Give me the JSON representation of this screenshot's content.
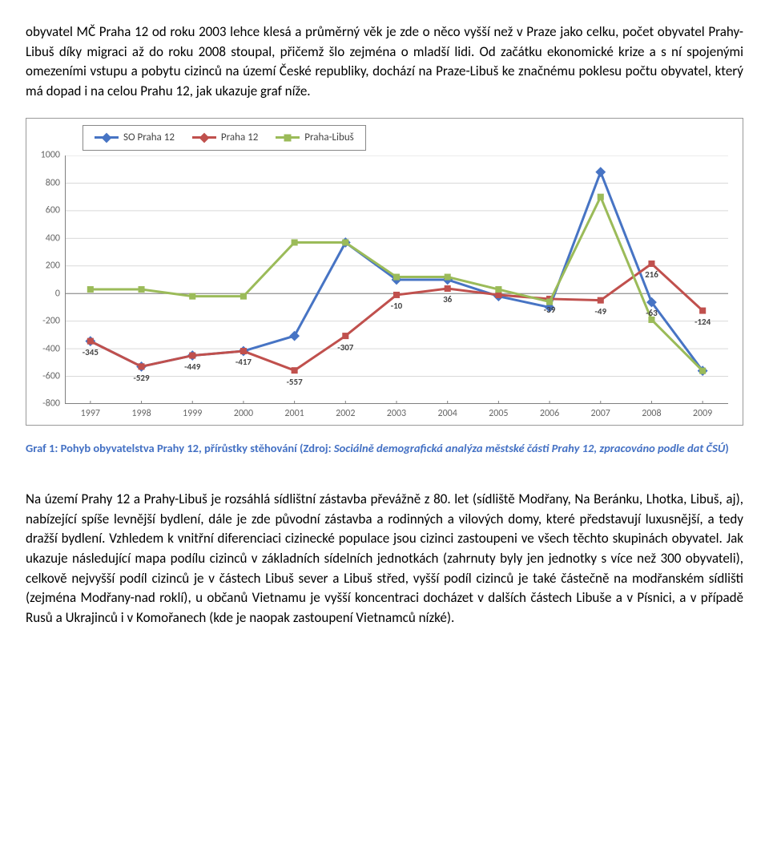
{
  "para1": "obyvatel MČ Praha 12 od roku 2003 lehce klesá a průměrný věk je zde o něco vyšší než v Praze jako celku, počet obyvatel Prahy-Libuš díky migraci až do roku 2008 stoupal, přičemž šlo zejména o mladší lidi. Od začátku ekonomické krize a s ní spojenými omezeními vstupu a pobytu cizinců na území České republiky, dochází na Praze-Libuš ke značnému poklesu počtu obyvatel, který má dopad i na celou Prahu 12, jak ukazuje graf níže.",
  "caption_lead": "Graf 1: Pohyb obyvatelstva Prahy 12, přírůstky stěhování (Zdroj: ",
  "caption_source": "Sociálně demografická analýza městské části Prahy 12, zpracováno podle dat ČSÚ",
  "caption_tail": ")",
  "para2": "Na území Prahy 12 a Prahy-Libuš je rozsáhlá sídlištní zástavba převážně z 80. let (sídliště Modřany, Na Beránku, Lhotka, Libuš, aj), nabízející spíše levnější bydlení, dále je zde původní zástavba a rodinných a vilových domy, které představují luxusnější, a tedy dražší bydlení. Vzhledem k vnitřní diferenciaci cizinecké populace jsou cizinci zastoupeni ve všech těchto skupinách obyvatel. Jak ukazuje následující mapa podílu cizinců v základních sídelních jednotkách (zahrnuty byly jen jednotky s více než 300 obyvateli), celkově nejvyšší podíl cizinců je v částech Libuš sever a Libuš střed, vyšší podíl cizinců je také částečně na modřanském sídlišti (zejména Modřany-nad roklí), u občanů Vietnamu je vyšší koncentraci docházet v dalších částech Libuše a v Písnici, a v případě Rusů a Ukrajinců i v Komořanech (kde je naopak zastoupení Vietnamců nízké).",
  "chart": {
    "type": "line",
    "categories": [
      "1997",
      "1998",
      "1999",
      "2000",
      "2001",
      "2002",
      "2003",
      "2004",
      "2005",
      "2006",
      "2007",
      "2008",
      "2009"
    ],
    "series": [
      {
        "name": "SO Praha 12",
        "values": [
          -345,
          -529,
          -449,
          -417,
          -307,
          370,
          100,
          100,
          -20,
          -100,
          880,
          -63,
          -560
        ],
        "color": "#4774c4"
      },
      {
        "name": "Praha 12",
        "values": [
          -345,
          -529,
          -449,
          -417,
          -557,
          -307,
          -10,
          36,
          -10,
          -39,
          -49,
          216,
          -124
        ],
        "color": "#c0504d"
      },
      {
        "name": "Praha-Libuš",
        "values": [
          30,
          30,
          -20,
          -20,
          370,
          370,
          120,
          120,
          30,
          -60,
          700,
          -190,
          -560
        ],
        "color": "#9bbb59"
      }
    ],
    "data_labels": [
      {
        "x": 0,
        "y": -345,
        "text": "-345"
      },
      {
        "x": 1,
        "y": -529,
        "text": "-529"
      },
      {
        "x": 2,
        "y": -449,
        "text": "-449"
      },
      {
        "x": 3,
        "y": -417,
        "text": "-417"
      },
      {
        "x": 4,
        "y": -557,
        "text": "-557"
      },
      {
        "x": 5,
        "y": -307,
        "text": "-307"
      },
      {
        "x": 6,
        "y": -10,
        "text": "-10"
      },
      {
        "x": 7,
        "y": 36,
        "text": "36"
      },
      {
        "x": 9,
        "y": -39,
        "text": "-39"
      },
      {
        "x": 10,
        "y": -49,
        "text": "-49"
      },
      {
        "x": 11,
        "y": 216,
        "text": "216"
      },
      {
        "x": 11,
        "y": -63,
        "text": "-63"
      },
      {
        "x": 12,
        "y": -124,
        "text": "-124"
      }
    ],
    "ylim": [
      -800,
      1000
    ],
    "ytick_step": 200,
    "grid_color": "#d9d9d9",
    "axis_color": "#808080",
    "label_color": "#666666",
    "label_fontsize": 12
  }
}
